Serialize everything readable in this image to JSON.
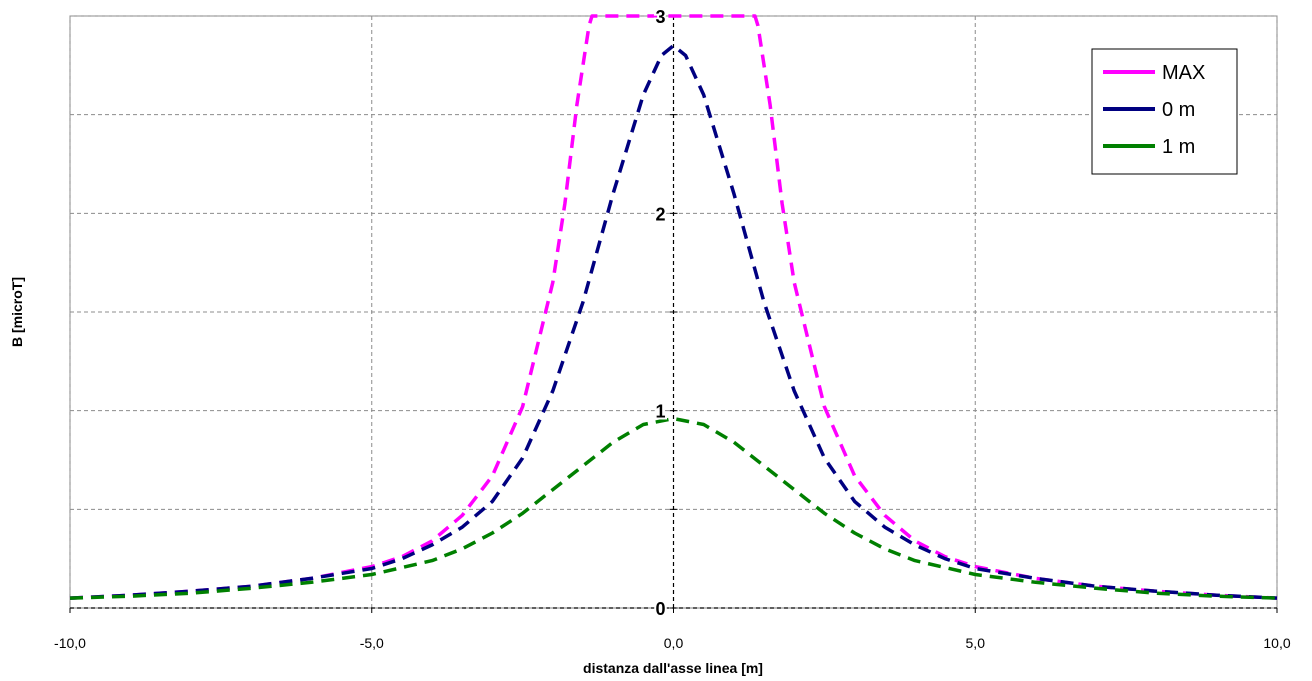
{
  "chart_data": {
    "type": "line",
    "xlabel": "distanza dall'asse  linea [m]",
    "ylabel": "B [microT]",
    "xlim": [
      -10,
      10
    ],
    "ylim": [
      0,
      3
    ],
    "x_ticks": [
      {
        "value": -10,
        "label": "-10,0"
      },
      {
        "value": -5,
        "label": "-5,0"
      },
      {
        "value": 0,
        "label": "0,0"
      },
      {
        "value": 5,
        "label": "5,0"
      },
      {
        "value": 10,
        "label": "10,0"
      }
    ],
    "y_ticks": [
      {
        "value": 0,
        "label": "0"
      },
      {
        "value": 1,
        "label": "1"
      },
      {
        "value": 2,
        "label": "2"
      },
      {
        "value": 3,
        "label": "3"
      }
    ],
    "grid": true,
    "legend_position": "top-right",
    "series": [
      {
        "name": "MAX",
        "color": "#ff00ff",
        "x": [
          -10,
          -9,
          -8,
          -7,
          -6,
          -5,
          -4.5,
          -4,
          -3.5,
          -3,
          -2.5,
          -2,
          -1.8,
          -1.6,
          -1.4,
          -1.35,
          1.35,
          1.4,
          1.6,
          1.8,
          2,
          2.5,
          3,
          3.5,
          4,
          4.5,
          5,
          6,
          7,
          8,
          9,
          10
        ],
        "y": [
          0.05,
          0.065,
          0.085,
          0.11,
          0.15,
          0.21,
          0.26,
          0.34,
          0.47,
          0.67,
          1.02,
          1.65,
          2.05,
          2.55,
          2.95,
          3.0,
          3.0,
          2.95,
          2.55,
          2.05,
          1.65,
          1.02,
          0.67,
          0.47,
          0.34,
          0.26,
          0.21,
          0.15,
          0.11,
          0.085,
          0.065,
          0.05
        ]
      },
      {
        "name": "0 m",
        "color": "#000080",
        "x": [
          -10,
          -9,
          -8,
          -7,
          -6,
          -5,
          -4.5,
          -4,
          -3.5,
          -3,
          -2.5,
          -2,
          -1.5,
          -1,
          -0.5,
          -0.2,
          0,
          0.2,
          0.5,
          1,
          1.5,
          2,
          2.5,
          3,
          3.5,
          4,
          4.5,
          5,
          6,
          7,
          8,
          9,
          10
        ],
        "y": [
          0.05,
          0.065,
          0.085,
          0.11,
          0.15,
          0.2,
          0.25,
          0.32,
          0.41,
          0.54,
          0.76,
          1.1,
          1.55,
          2.1,
          2.6,
          2.8,
          2.85,
          2.8,
          2.6,
          2.1,
          1.55,
          1.1,
          0.76,
          0.54,
          0.41,
          0.32,
          0.25,
          0.2,
          0.15,
          0.11,
          0.085,
          0.065,
          0.05
        ]
      },
      {
        "name": "1 m",
        "color": "#008000",
        "x": [
          -10,
          -9,
          -8,
          -7,
          -6,
          -5,
          -4,
          -3.5,
          -3,
          -2.5,
          -2,
          -1.5,
          -1,
          -0.5,
          0,
          0.5,
          1,
          1.5,
          2,
          2.5,
          3,
          3.5,
          4,
          5,
          6,
          7,
          8,
          9,
          10
        ],
        "y": [
          0.05,
          0.06,
          0.075,
          0.1,
          0.13,
          0.17,
          0.24,
          0.3,
          0.38,
          0.48,
          0.6,
          0.72,
          0.84,
          0.93,
          0.96,
          0.93,
          0.84,
          0.72,
          0.6,
          0.48,
          0.38,
          0.3,
          0.24,
          0.17,
          0.13,
          0.1,
          0.075,
          0.06,
          0.05
        ]
      }
    ]
  }
}
